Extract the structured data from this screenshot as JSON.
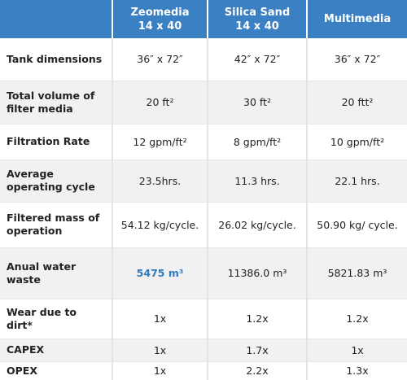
{
  "header": {
    "color": "#3b80c3",
    "columns": [
      {
        "lines": [
          "Zeomedia",
          "14 x 40"
        ]
      },
      {
        "lines": [
          "Silica Sand",
          "14 x 40"
        ]
      },
      {
        "lines": [
          "Multimedia"
        ]
      }
    ]
  },
  "rows": [
    {
      "label": "Tank dimensions",
      "cells": [
        "36″ x 72″",
        "42″ x 72″",
        "36″ x 72″"
      ]
    },
    {
      "label": "Total volume of filter media",
      "cells": [
        "20 ft²",
        "30 ft²",
        "20 ftt²"
      ]
    },
    {
      "label": "Filtration Rate",
      "cells": [
        "12 gpm/ft²",
        "8 gpm/ft²",
        "10 gpm/ft²"
      ]
    },
    {
      "label": "Average operating cycle",
      "cells": [
        "23.5hrs.",
        "11.3 hrs.",
        "22.1 hrs."
      ]
    },
    {
      "label": "Filtered mass of operation",
      "cells": [
        "54.12 kg/cycle.",
        "26.02 kg/cycle.",
        "50.90 kg/ cycle."
      ]
    },
    {
      "label": "Anual water waste",
      "cells": [
        "5475 m³",
        "11386.0 m³",
        "5821.83 m³"
      ]
    },
    {
      "label": "Wear due to dirt*",
      "cells": [
        "1x",
        "1.2x",
        "1.2x"
      ]
    },
    {
      "label": "CAPEX",
      "cells": [
        "1x",
        "1.7x",
        "1x"
      ]
    },
    {
      "label": "OPEX",
      "cells": [
        "1x",
        "2.2x",
        "1.3x"
      ]
    }
  ],
  "highlight": {
    "row": 5,
    "column": 0,
    "color": "#2f7bbf"
  }
}
